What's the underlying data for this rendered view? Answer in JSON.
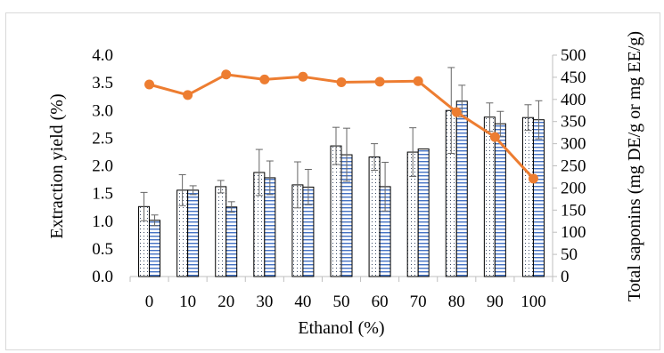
{
  "chart_data": {
    "type": "bar",
    "xlabel": "Ethanol (%)",
    "ylabel_left": "Extraction yield (%)",
    "ylabel_right": "Total saponins (mg DE/g or mg EE/g)",
    "categories": [
      "0",
      "10",
      "20",
      "30",
      "40",
      "50",
      "60",
      "70",
      "80",
      "90",
      "100"
    ],
    "ylim_left": [
      0,
      4.0
    ],
    "ylim_right": [
      0,
      500
    ],
    "yticks_left": [
      "0.0",
      "0.5",
      "1.0",
      "1.5",
      "2.0",
      "2.5",
      "3.0",
      "3.5",
      "4.0"
    ],
    "yticks_right": [
      "0",
      "50",
      "100",
      "150",
      "200",
      "250",
      "300",
      "350",
      "400",
      "450",
      "500"
    ],
    "grid": false,
    "series": [
      {
        "kind": "bar",
        "axis": "right",
        "pattern": "dots",
        "values": [
          158,
          195,
          203,
          235,
          207,
          295,
          270,
          281,
          375,
          360,
          359
        ],
        "errors": [
          32,
          35,
          14,
          52,
          52,
          42,
          30,
          55,
          97,
          32,
          29
        ]
      },
      {
        "kind": "bar",
        "axis": "right",
        "pattern": "horizontal-lines",
        "values": [
          127,
          195,
          157,
          223,
          202,
          275,
          203,
          288,
          396,
          345,
          354
        ],
        "errors": [
          12,
          10,
          12,
          38,
          40,
          60,
          55,
          0,
          36,
          28,
          43
        ]
      },
      {
        "kind": "line",
        "axis": "left",
        "color": "#ed7d31",
        "values": [
          3.47,
          3.28,
          3.65,
          3.56,
          3.61,
          3.51,
          3.52,
          3.53,
          2.97,
          2.52,
          1.77
        ]
      }
    ]
  }
}
